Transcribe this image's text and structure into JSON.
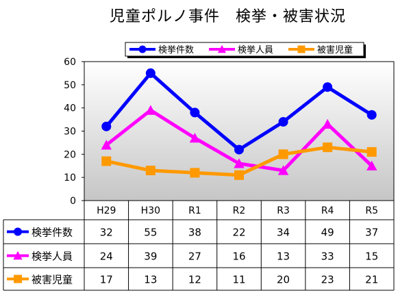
{
  "chart_data": {
    "type": "line",
    "title": "児童ポルノ事件　検挙・被害状況",
    "categories": [
      "H29",
      "H30",
      "R1",
      "R2",
      "R3",
      "R4",
      "R5"
    ],
    "ylim": [
      0,
      60
    ],
    "yticks": [
      0,
      10,
      20,
      30,
      40,
      50,
      60
    ],
    "grid": false,
    "legend_position": "top",
    "series": [
      {
        "name": "検挙件数",
        "values": [
          32,
          55,
          38,
          22,
          34,
          49,
          37
        ],
        "color": "#0000ff",
        "marker": "circle"
      },
      {
        "name": "検挙人員",
        "values": [
          24,
          39,
          27,
          16,
          13,
          33,
          15
        ],
        "color": "#ff00ff",
        "marker": "triangle"
      },
      {
        "name": "被害児童",
        "values": [
          17,
          13,
          12,
          11,
          20,
          23,
          21
        ],
        "color": "#ff9900",
        "marker": "square"
      }
    ]
  }
}
